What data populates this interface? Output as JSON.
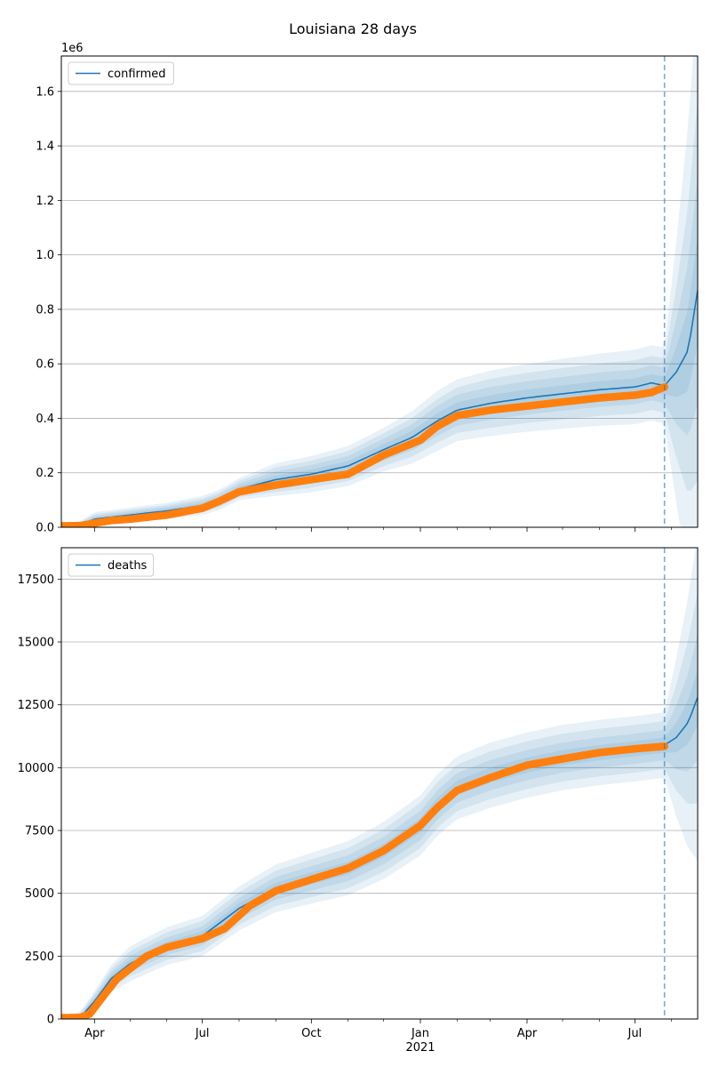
{
  "title": "Louisiana 28 days",
  "chart_data": [
    {
      "type": "line",
      "legend": "confirmed",
      "legend_placement": "top-left",
      "grid": "y",
      "ylim": [
        0,
        1730000
      ],
      "yticks": [
        0,
        200000,
        400000,
        600000,
        800000,
        1000000,
        1200000,
        1400000,
        1600000
      ],
      "ytick_labels": [
        "0.0",
        "0.2",
        "0.4",
        "0.6",
        "0.8",
        "1.0",
        "1.2",
        "1.4",
        "1.6"
      ],
      "offset_label": "1e6",
      "forecast_start": "2021-07-26",
      "model_mean": [
        [
          "2020-03-04",
          5000
        ],
        [
          "2020-03-20",
          8000
        ],
        [
          "2020-04-01",
          30000
        ],
        [
          "2020-05-01",
          45000
        ],
        [
          "2020-06-01",
          60000
        ],
        [
          "2020-07-01",
          80000
        ],
        [
          "2020-07-15",
          100000
        ],
        [
          "2020-08-01",
          140000
        ],
        [
          "2020-09-01",
          175000
        ],
        [
          "2020-10-01",
          195000
        ],
        [
          "2020-11-01",
          225000
        ],
        [
          "2020-12-01",
          285000
        ],
        [
          "2020-12-25",
          330000
        ],
        [
          "2021-01-15",
          390000
        ],
        [
          "2021-02-01",
          430000
        ],
        [
          "2021-03-01",
          455000
        ],
        [
          "2021-04-01",
          475000
        ],
        [
          "2021-05-01",
          490000
        ],
        [
          "2021-06-01",
          505000
        ],
        [
          "2021-07-01",
          515000
        ],
        [
          "2021-07-15",
          530000
        ],
        [
          "2021-07-26",
          520000
        ],
        [
          "2021-08-05",
          570000
        ],
        [
          "2021-08-15",
          650000
        ],
        [
          "2021-08-23",
          870000
        ]
      ],
      "band_offsets": [
        [
          [
            "2020-03-04",
            4000
          ],
          [
            "2020-04-01",
            25000
          ],
          [
            "2020-06-01",
            30000
          ],
          [
            "2020-08-01",
            40000
          ],
          [
            "2020-09-01",
            60000
          ],
          [
            "2020-12-01",
            80000
          ],
          [
            "2021-01-15",
            110000
          ],
          [
            "2021-03-01",
            120000
          ],
          [
            "2021-07-26",
            140000
          ],
          [
            "2021-08-23",
            1100000
          ]
        ],
        [
          [
            "2020-03-04",
            3000
          ],
          [
            "2020-04-01",
            18000
          ],
          [
            "2020-06-01",
            22000
          ],
          [
            "2020-08-01",
            30000
          ],
          [
            "2020-09-01",
            45000
          ],
          [
            "2020-12-01",
            60000
          ],
          [
            "2021-01-15",
            80000
          ],
          [
            "2021-03-01",
            90000
          ],
          [
            "2021-07-26",
            100000
          ],
          [
            "2021-08-23",
            700000
          ]
        ],
        [
          [
            "2020-03-04",
            2000
          ],
          [
            "2020-04-01",
            12000
          ],
          [
            "2020-06-01",
            15000
          ],
          [
            "2020-08-01",
            20000
          ],
          [
            "2020-09-01",
            30000
          ],
          [
            "2020-12-01",
            40000
          ],
          [
            "2021-01-15",
            55000
          ],
          [
            "2021-03-01",
            60000
          ],
          [
            "2021-07-26",
            65000
          ],
          [
            "2021-08-23",
            420000
          ]
        ],
        [
          [
            "2020-03-04",
            1000
          ],
          [
            "2020-04-01",
            6000
          ],
          [
            "2020-06-01",
            8000
          ],
          [
            "2020-08-01",
            10000
          ],
          [
            "2020-09-01",
            15000
          ],
          [
            "2020-12-01",
            20000
          ],
          [
            "2021-01-15",
            28000
          ],
          [
            "2021-03-01",
            30000
          ],
          [
            "2021-07-26",
            32000
          ],
          [
            "2021-08-23",
            200000
          ]
        ]
      ],
      "observed": [
        [
          "2020-03-04",
          5000
        ],
        [
          "2020-03-20",
          6000
        ],
        [
          "2020-04-01",
          15000
        ],
        [
          "2020-04-15",
          25000
        ],
        [
          "2020-05-01",
          30000
        ],
        [
          "2020-06-01",
          45000
        ],
        [
          "2020-07-01",
          70000
        ],
        [
          "2020-07-15",
          95000
        ],
        [
          "2020-08-01",
          130000
        ],
        [
          "2020-09-01",
          155000
        ],
        [
          "2020-10-01",
          175000
        ],
        [
          "2020-11-01",
          195000
        ],
        [
          "2020-12-01",
          265000
        ],
        [
          "2021-01-01",
          320000
        ],
        [
          "2021-01-15",
          370000
        ],
        [
          "2021-02-01",
          410000
        ],
        [
          "2021-03-01",
          430000
        ],
        [
          "2021-04-01",
          445000
        ],
        [
          "2021-05-01",
          460000
        ],
        [
          "2021-06-01",
          475000
        ],
        [
          "2021-07-01",
          485000
        ],
        [
          "2021-07-15",
          495000
        ],
        [
          "2021-07-26",
          515000
        ]
      ]
    },
    {
      "type": "line",
      "legend": "deaths",
      "legend_placement": "top-left",
      "grid": "y",
      "ylim": [
        0,
        18750
      ],
      "yticks": [
        0,
        2500,
        5000,
        7500,
        10000,
        12500,
        15000,
        17500
      ],
      "ytick_labels": [
        "0",
        "2500",
        "5000",
        "7500",
        "10000",
        "12500",
        "15000",
        "17500"
      ],
      "forecast_start": "2021-07-26",
      "model_mean": [
        [
          "2020-03-04",
          50
        ],
        [
          "2020-03-20",
          60
        ],
        [
          "2020-04-01",
          700
        ],
        [
          "2020-04-15",
          1600
        ],
        [
          "2020-05-01",
          2200
        ],
        [
          "2020-06-01",
          2900
        ],
        [
          "2020-07-01",
          3300
        ],
        [
          "2020-08-01",
          4400
        ],
        [
          "2020-09-01",
          5200
        ],
        [
          "2020-10-01",
          5600
        ],
        [
          "2020-11-01",
          6000
        ],
        [
          "2020-12-01",
          6700
        ],
        [
          "2021-01-01",
          7700
        ],
        [
          "2021-01-15",
          8500
        ],
        [
          "2021-02-01",
          9200
        ],
        [
          "2021-03-01",
          9700
        ],
        [
          "2021-04-01",
          10100
        ],
        [
          "2021-05-01",
          10400
        ],
        [
          "2021-06-01",
          10600
        ],
        [
          "2021-07-01",
          10750
        ],
        [
          "2021-07-26",
          10900
        ],
        [
          "2021-08-05",
          11200
        ],
        [
          "2021-08-15",
          11800
        ],
        [
          "2021-08-23",
          12800
        ]
      ],
      "band_offsets": [
        [
          [
            "2020-03-04",
            20
          ],
          [
            "2020-04-01",
            400
          ],
          [
            "2020-05-01",
            700
          ],
          [
            "2020-07-01",
            800
          ],
          [
            "2020-09-01",
            950
          ],
          [
            "2021-01-01",
            1200
          ],
          [
            "2021-03-01",
            1300
          ],
          [
            "2021-07-26",
            1300
          ],
          [
            "2021-08-23",
            6500
          ]
        ],
        [
          [
            "2020-03-04",
            15
          ],
          [
            "2020-04-01",
            300
          ],
          [
            "2020-05-01",
            500
          ],
          [
            "2020-07-01",
            600
          ],
          [
            "2020-09-01",
            700
          ],
          [
            "2021-01-01",
            900
          ],
          [
            "2021-03-01",
            950
          ],
          [
            "2021-07-26",
            950
          ],
          [
            "2021-08-23",
            4200
          ]
        ],
        [
          [
            "2020-03-04",
            10
          ],
          [
            "2020-04-01",
            200
          ],
          [
            "2020-05-01",
            320
          ],
          [
            "2020-07-01",
            380
          ],
          [
            "2020-09-01",
            450
          ],
          [
            "2021-01-01",
            580
          ],
          [
            "2021-03-01",
            600
          ],
          [
            "2021-07-26",
            600
          ],
          [
            "2021-08-23",
            2500
          ]
        ],
        [
          [
            "2020-03-04",
            5
          ],
          [
            "2020-04-01",
            100
          ],
          [
            "2020-05-01",
            160
          ],
          [
            "2020-07-01",
            190
          ],
          [
            "2020-09-01",
            220
          ],
          [
            "2021-01-01",
            280
          ],
          [
            "2021-03-01",
            300
          ],
          [
            "2021-07-26",
            300
          ],
          [
            "2021-08-23",
            1100
          ]
        ]
      ],
      "observed": [
        [
          "2020-03-04",
          50
        ],
        [
          "2020-03-20",
          60
        ],
        [
          "2020-03-28",
          200
        ],
        [
          "2020-04-10",
          1000
        ],
        [
          "2020-04-20",
          1600
        ],
        [
          "2020-05-01",
          2000
        ],
        [
          "2020-05-15",
          2500
        ],
        [
          "2020-06-01",
          2850
        ],
        [
          "2020-07-01",
          3200
        ],
        [
          "2020-07-20",
          3600
        ],
        [
          "2020-08-10",
          4500
        ],
        [
          "2020-09-01",
          5100
        ],
        [
          "2020-10-01",
          5550
        ],
        [
          "2020-11-01",
          6000
        ],
        [
          "2020-12-01",
          6700
        ],
        [
          "2021-01-01",
          7700
        ],
        [
          "2021-01-15",
          8400
        ],
        [
          "2021-02-01",
          9100
        ],
        [
          "2021-03-01",
          9600
        ],
        [
          "2021-04-01",
          10100
        ],
        [
          "2021-05-01",
          10350
        ],
        [
          "2021-06-01",
          10600
        ],
        [
          "2021-07-01",
          10750
        ],
        [
          "2021-07-26",
          10850
        ]
      ]
    }
  ],
  "x_axis": {
    "range": [
      "2020-03-04",
      "2021-08-23"
    ],
    "ticks": [
      {
        "date": "2020-04-01",
        "label": "Apr"
      },
      {
        "date": "2020-07-01",
        "label": "Jul"
      },
      {
        "date": "2020-10-01",
        "label": "Oct"
      },
      {
        "date": "2021-01-01",
        "label": "Jan"
      },
      {
        "date": "2021-04-01",
        "label": "Apr"
      },
      {
        "date": "2021-07-01",
        "label": "Jul"
      }
    ],
    "year_label": "2021",
    "minor_ticks": [
      "2020-05-01",
      "2020-06-01",
      "2020-08-01",
      "2020-09-01",
      "2020-11-01",
      "2020-12-01",
      "2021-02-01",
      "2021-03-01",
      "2021-05-01",
      "2021-06-01",
      "2021-08-01"
    ]
  },
  "colors": {
    "model": "#1f77b4",
    "observed": "#ff7f0e",
    "band": "#1f77b4",
    "grid": "#b0b0b0",
    "forecast_line": "#1f77b4"
  }
}
